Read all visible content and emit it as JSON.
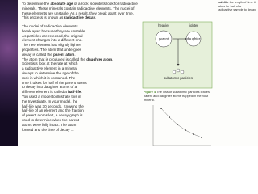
{
  "sidenote": [
    "half-life",
    " the length of time it takes for half of a radioactive sample to decay"
  ],
  "intro": {
    "lines": [
      [
        "To determine the ",
        {
          "b": "absolute age"
        },
        " of a rock, scientists look for radioactive"
      ],
      [
        "minerals. These minerals contain radioactive elements. The nuclei of"
      ],
      [
        "these elements are unstable. As a result, they break apart over time."
      ],
      [
        "This process is known as ",
        {
          "b": "radioactive decay"
        },
        "."
      ]
    ]
  },
  "column": {
    "lines": [
      [
        "The nuclei of radioactive elements"
      ],
      [
        "break apart because they are unstable."
      ],
      [
        "As particles are released, the original"
      ],
      [
        "element changes into a different one."
      ],
      [
        "The new element has slightly lighter"
      ],
      [
        "properties. The atom that undergoes"
      ],
      [
        "decay is called the ",
        {
          "b": "parent atom"
        },
        "."
      ],
      [
        "The atom that is produced is called the ",
        {
          "b": "daughter atom"
        },
        "."
      ],
      [
        "Scientists look at the rate at which"
      ],
      [
        "a radioactive element in a mineral"
      ],
      [
        "decays to determine the age of the"
      ],
      [
        "rock in which it is contained. The"
      ],
      [
        "time it takes for half of the parent atoms"
      ],
      [
        "to decay into daughter atoms of a"
      ],
      [
        "different element is called a ",
        {
          "b": "half-life"
        },
        "."
      ],
      [
        "You used a model to illustrate this in"
      ],
      [
        "the Investigate. In your model, the"
      ],
      [
        "half-life was 30 seconds. Knowing the"
      ],
      [
        "half-life of an element and the fraction"
      ],
      [
        "of parent atoms left, a decay graph is"
      ],
      [
        "used to determine when the parent"
      ],
      [
        "atoms were fully intact. The atom"
      ],
      [
        "formed and the time of decay ..."
      ]
    ]
  },
  "figure": {
    "heavier": "heavier",
    "lighter": "lighter",
    "parent": "parent",
    "daughter": "daughter",
    "particles": "subatomic particles",
    "caption": [
      {
        "b": "Figure 4"
      },
      " The loss of subatomic particles leaves parent and daughter atoms trapped in the host mineral."
    ]
  }
}
